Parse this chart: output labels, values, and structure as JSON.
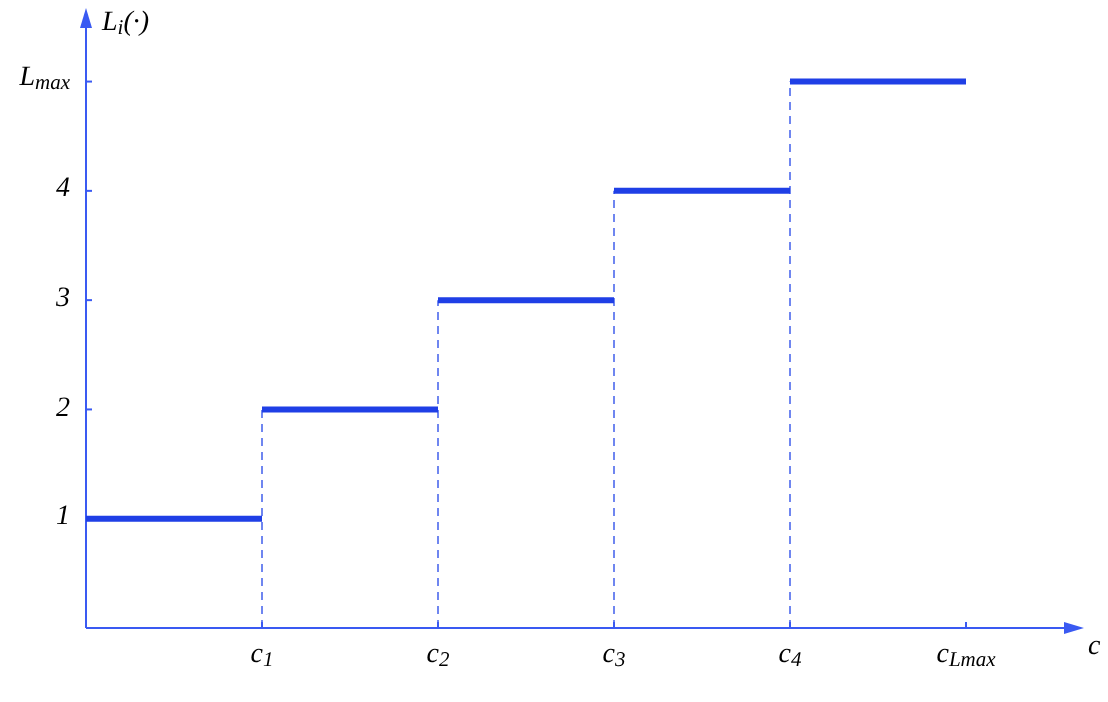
{
  "chart_data": {
    "type": "step",
    "xlabel": "c",
    "ylabel": "L$_{i}$(·)",
    "categories": [
      null,
      "c$_{1}$",
      "c$_{2}$",
      "c$_{3}$",
      "c$_{4}$",
      "c$_{L}$$_{max}$"
    ],
    "series": [
      {
        "color": "#1f3fe6",
        "values": [
          1,
          2,
          3,
          4,
          5,
          5
        ]
      }
    ],
    "ylim": [
      0,
      5.6
    ],
    "yticks": [
      1,
      2,
      3,
      4,
      {
        "value": 5,
        "label": "L$_{max}$"
      }
    ],
    "ref_lines": [
      {
        "axis": "x",
        "value": "c$_{1}$",
        "color": "#6f86f0",
        "line_style": "dashed"
      },
      {
        "axis": "x",
        "value": "c$_{2}$",
        "color": "#6f86f0",
        "line_style": "dashed"
      },
      {
        "axis": "x",
        "value": "c$_{3}$",
        "color": "#6f86f0",
        "line_style": "dashed"
      },
      {
        "axis": "x",
        "value": "c$_{4}$",
        "color": "#6f86f0",
        "line_style": "dashed"
      }
    ],
    "grid": false,
    "legend": false
  }
}
